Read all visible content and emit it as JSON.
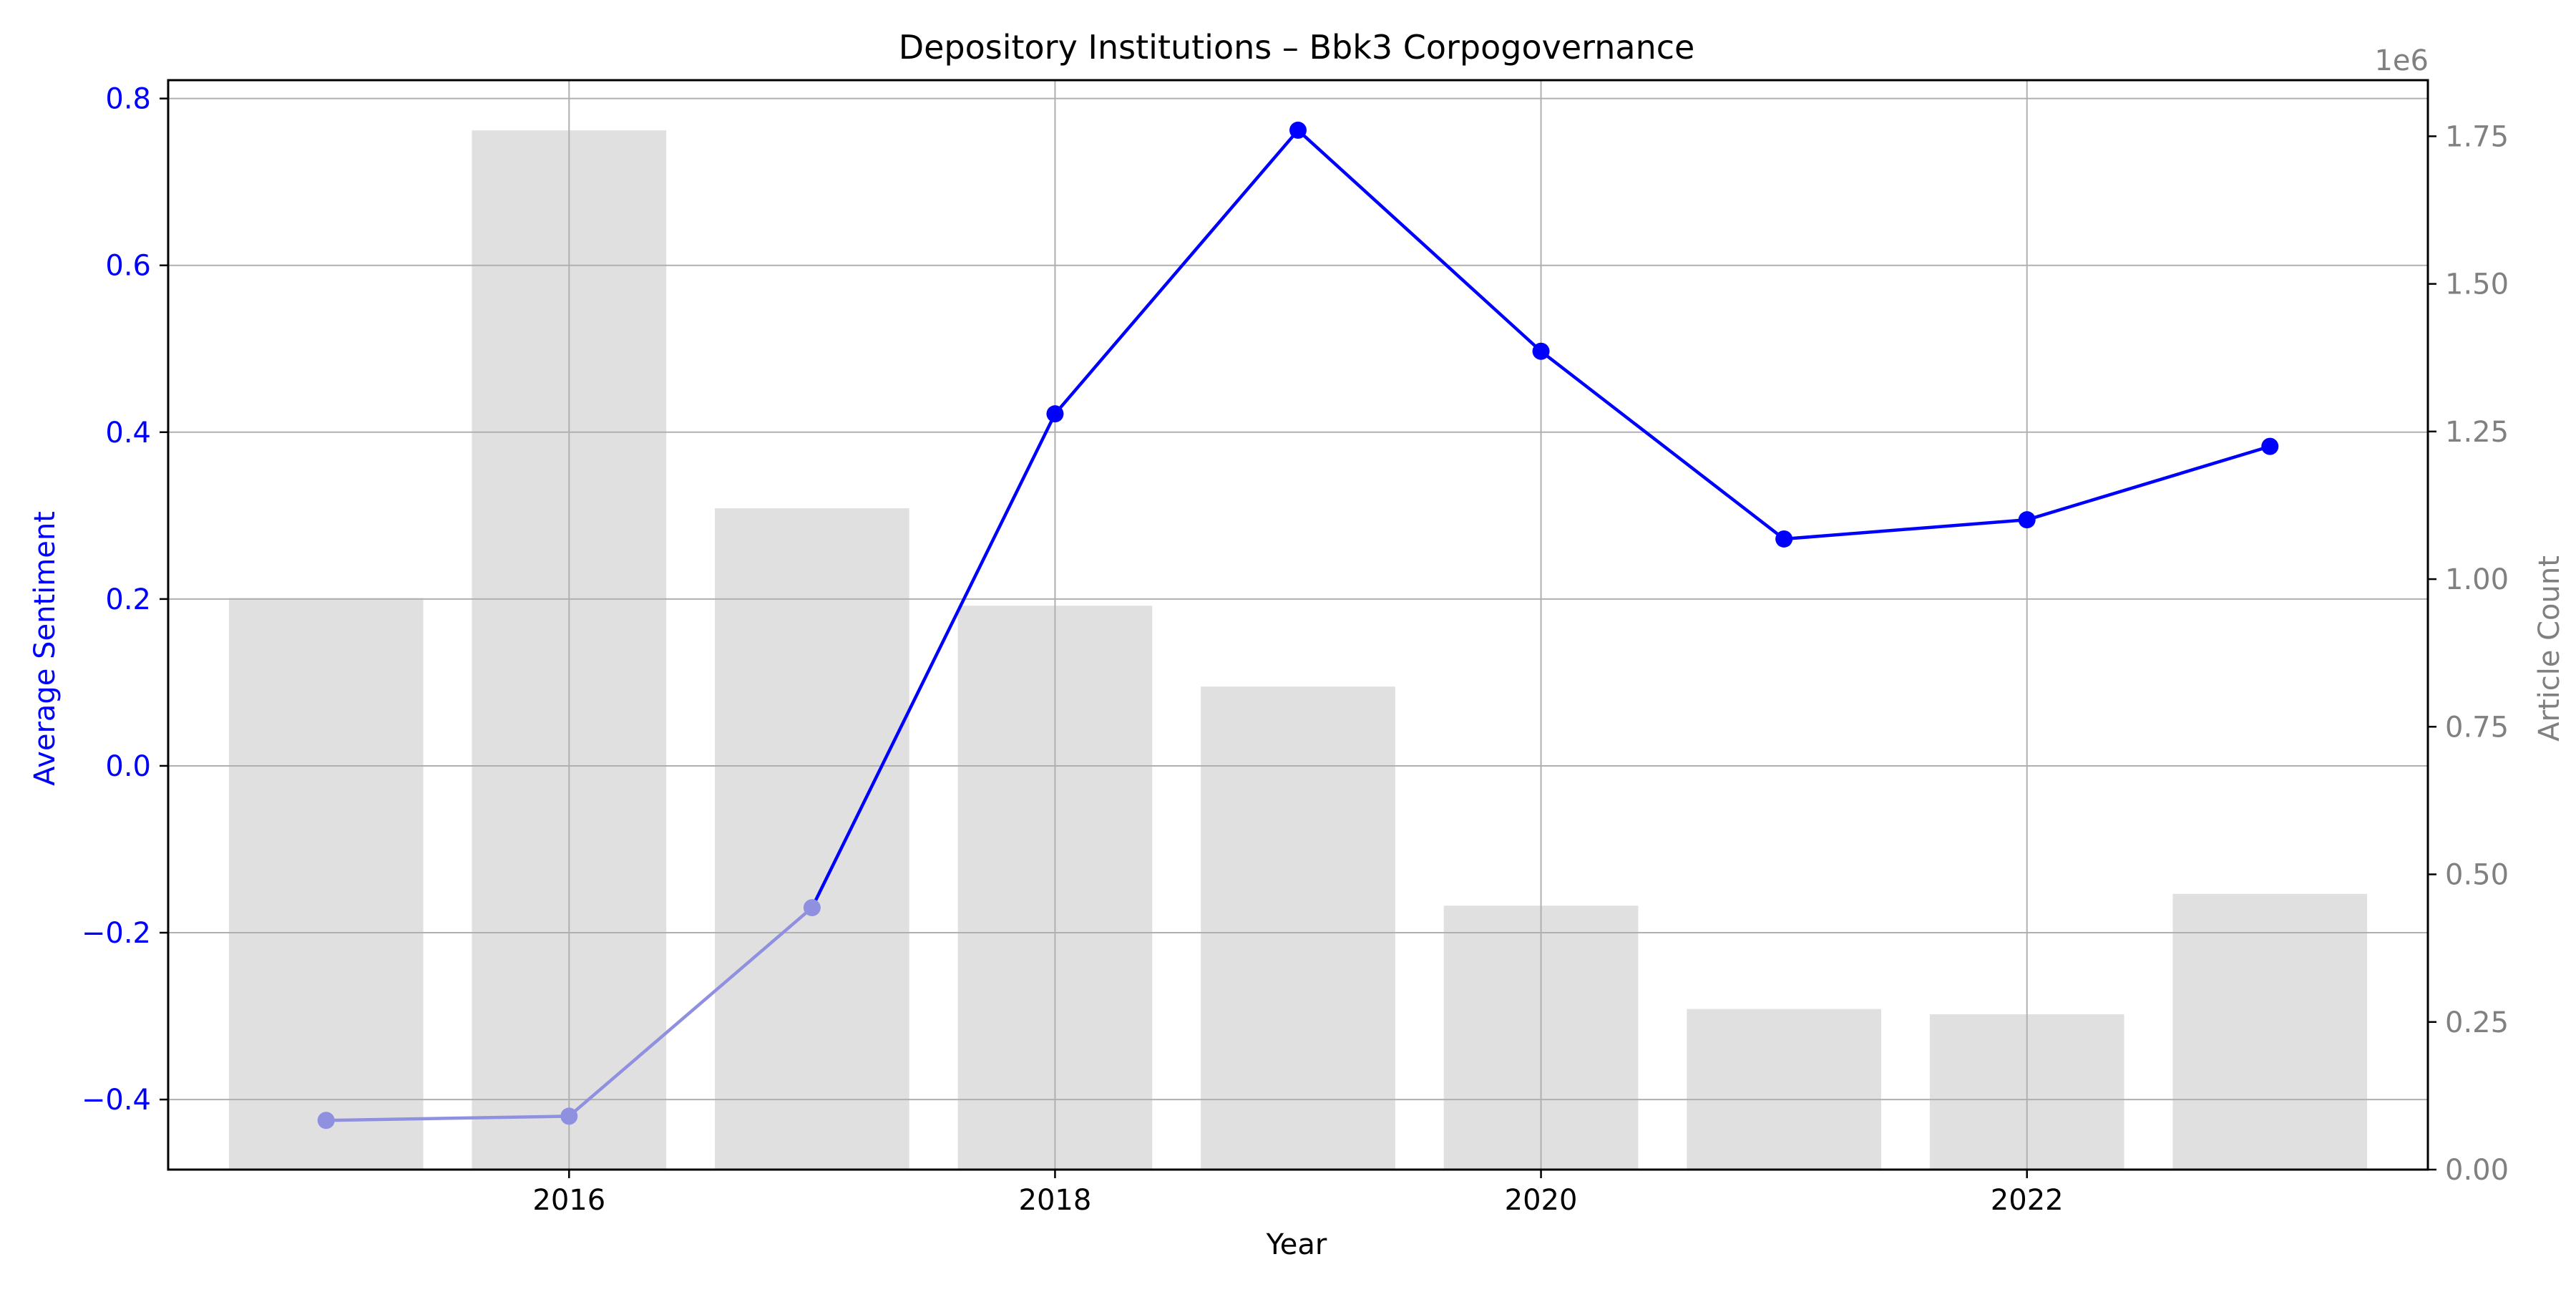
{
  "chart_data": {
    "type": "bar+line",
    "title": "Depository Institutions – Bbk3 Corpogovernance",
    "xlabel": "Year",
    "ylabel_left": "Average Sentiment",
    "ylabel_right": "Article Count",
    "right_axis_offset_label": "1e6",
    "x": [
      2015,
      2016,
      2017,
      2018,
      2019,
      2020,
      2021,
      2022,
      2023
    ],
    "x_ticks": [
      2016,
      2018,
      2020,
      2022
    ],
    "x_tick_labels": [
      "2016",
      "2018",
      "2020",
      "2022"
    ],
    "xlim": [
      2014.35,
      2023.65
    ],
    "left_axis": {
      "ylim": [
        -0.484,
        0.822
      ],
      "ticks": [
        -0.4,
        -0.2,
        0.0,
        0.2,
        0.4,
        0.6,
        0.8
      ],
      "tick_labels": [
        "−0.4",
        "−0.2",
        "0.0",
        "0.2",
        "0.4",
        "0.6",
        "0.8"
      ],
      "color": "#0000ff"
    },
    "right_axis": {
      "ylim": [
        0,
        1845000
      ],
      "ticks": [
        0,
        250000,
        500000,
        750000,
        1000000,
        1250000,
        1500000,
        1750000
      ],
      "tick_labels": [
        "0.00",
        "0.25",
        "0.50",
        "0.75",
        "1.00",
        "1.25",
        "1.50",
        "1.75"
      ],
      "color": "#808080"
    },
    "series": [
      {
        "name": "Article Count",
        "type": "bar",
        "axis": "right",
        "color": "#e0e0e0",
        "values": [
          968000,
          1760000,
          1120000,
          955000,
          818000,
          447000,
          272000,
          263000,
          467000
        ]
      },
      {
        "name": "Average Sentiment",
        "type": "line",
        "axis": "left",
        "color": "#0000ff",
        "faded_color": "#9090e0",
        "faded_points": [
          true,
          true,
          true,
          false,
          false,
          false,
          false,
          false,
          false
        ],
        "values": [
          -0.425,
          -0.42,
          -0.17,
          0.422,
          0.762,
          0.497,
          0.272,
          0.295,
          0.383
        ]
      }
    ],
    "grid": true,
    "legend": "none"
  }
}
